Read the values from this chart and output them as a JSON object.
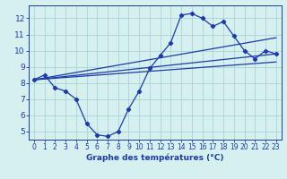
{
  "title": "Graphe des températures (°C)",
  "background_color": "#d6f0f0",
  "grid_color": "#aad4d4",
  "line_color": "#1a3aad",
  "xlim": [
    -0.5,
    23.5
  ],
  "ylim": [
    4.5,
    12.8
  ],
  "yticks": [
    5,
    6,
    7,
    8,
    9,
    10,
    11,
    12
  ],
  "xticks": [
    0,
    1,
    2,
    3,
    4,
    5,
    6,
    7,
    8,
    9,
    10,
    11,
    12,
    13,
    14,
    15,
    16,
    17,
    18,
    19,
    20,
    21,
    22,
    23
  ],
  "series1_x": [
    0,
    1,
    2,
    3,
    4,
    5,
    6,
    7,
    8,
    9,
    10,
    11,
    12,
    13,
    14,
    15,
    16,
    17,
    18,
    19,
    20,
    21,
    22,
    23
  ],
  "series1_y": [
    8.2,
    8.5,
    7.7,
    7.5,
    7.0,
    5.5,
    4.8,
    4.7,
    5.0,
    6.4,
    7.5,
    8.9,
    9.7,
    10.5,
    12.2,
    12.3,
    12.0,
    11.5,
    11.8,
    10.9,
    10.0,
    9.5,
    10.0,
    9.8
  ],
  "series2_x": [
    0,
    23
  ],
  "series2_y": [
    8.2,
    10.8
  ],
  "series3_x": [
    0,
    23
  ],
  "series3_y": [
    8.2,
    9.8
  ],
  "series4_x": [
    0,
    23
  ],
  "series4_y": [
    8.2,
    9.3
  ]
}
